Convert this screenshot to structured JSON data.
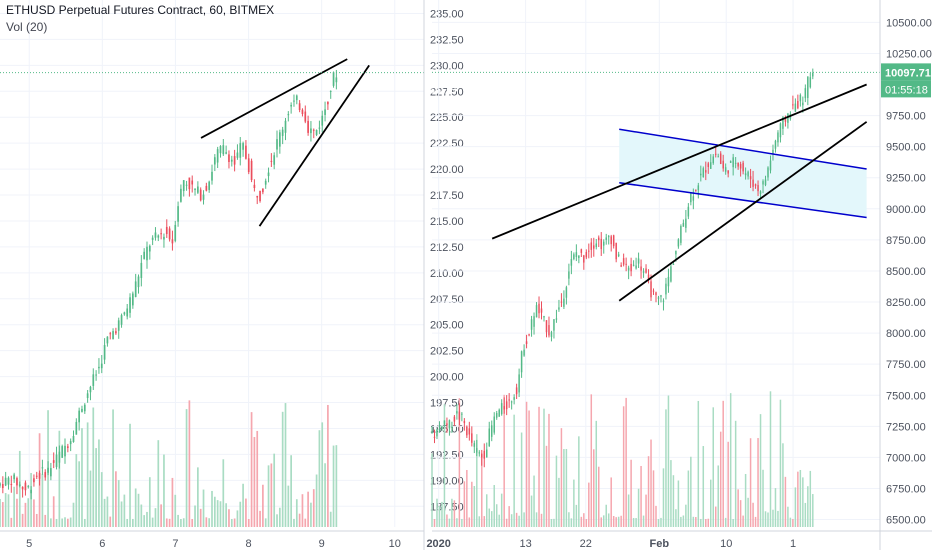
{
  "legend": {
    "symbol": "ETHUSD Perpetual Futures Contract, 60, BITMEX",
    "volume": "Vol (20)"
  },
  "colors": {
    "up": "#53b987",
    "down": "#eb4d5c",
    "vol_up": "#a9dcc3",
    "vol_down": "#f5a6ae",
    "trendline": "#000000",
    "channel": "#0000cc",
    "channel_fill": "#e3f7fb",
    "grid": "#f0f3fa",
    "axis_text": "#4c525e",
    "price_line": "#53b987"
  },
  "chart_data": [
    {
      "type": "candlestick",
      "panel": "left",
      "grid": true,
      "y_axis": {
        "ticks": [
          "235.00",
          "232.50",
          "230.00",
          "229.30",
          "227.50",
          "225.00",
          "222.50",
          "220.00",
          "217.50",
          "215.00",
          "212.50",
          "210.00",
          "207.50",
          "205.00",
          "202.50",
          "200.00",
          "197.50",
          "195.00",
          "192.50",
          "190.00",
          "187.50"
        ],
        "range": [
          185.5,
          236.3
        ]
      },
      "x_axis": {
        "ticks": [
          "5",
          "6",
          "7",
          "8",
          "9",
          "10"
        ]
      },
      "last_price": {
        "value": "229.30",
        "countdown": "55:18"
      },
      "path": [
        [
          4.6,
          189.5
        ],
        [
          4.8,
          190.2
        ],
        [
          5.0,
          189.0
        ],
        [
          5.15,
          190.5
        ],
        [
          5.3,
          191.0
        ],
        [
          5.45,
          192.5
        ],
        [
          5.6,
          194.0
        ],
        [
          5.75,
          197.0
        ],
        [
          5.9,
          199.5
        ],
        [
          6.0,
          201.0
        ],
        [
          6.1,
          203.5
        ],
        [
          6.2,
          204.5
        ],
        [
          6.3,
          205.5
        ],
        [
          6.4,
          207.0
        ],
        [
          6.5,
          209.0
        ],
        [
          6.6,
          211.5
        ],
        [
          6.7,
          213.0
        ],
        [
          6.8,
          213.5
        ],
        [
          6.9,
          214.0
        ],
        [
          7.0,
          213.0
        ],
        [
          7.05,
          216.0
        ],
        [
          7.15,
          219.0
        ],
        [
          7.3,
          218.0
        ],
        [
          7.4,
          217.5
        ],
        [
          7.5,
          219.0
        ],
        [
          7.6,
          221.5
        ],
        [
          7.7,
          222.0
        ],
        [
          7.85,
          220.5
        ],
        [
          7.95,
          222.5
        ],
        [
          8.05,
          220.0
        ],
        [
          8.1,
          218.0
        ],
        [
          8.2,
          217.5
        ],
        [
          8.3,
          220.0
        ],
        [
          8.4,
          222.0
        ],
        [
          8.5,
          224.0
        ],
        [
          8.6,
          226.0
        ],
        [
          8.7,
          226.5
        ],
        [
          8.8,
          225.5
        ],
        [
          8.85,
          224.0
        ],
        [
          8.95,
          223.5
        ],
        [
          9.05,
          225.0
        ],
        [
          9.15,
          227.5
        ],
        [
          9.22,
          229.3
        ]
      ],
      "trendlines": [
        {
          "from": [
            7.35,
            223.0
          ],
          "to": [
            9.35,
            230.6
          ]
        },
        {
          "from": [
            8.15,
            214.5
          ],
          "to": [
            9.65,
            230.0
          ]
        }
      ]
    },
    {
      "type": "candlestick",
      "panel": "right",
      "grid": true,
      "y_axis": {
        "ticks": [
          "10500.00",
          "10250.00",
          "10097.71",
          "9750.00",
          "9500.00",
          "9250.00",
          "9000.00",
          "8750.00",
          "8500.00",
          "8250.00",
          "8000.00",
          "7750.00",
          "7500.00",
          "7250.00",
          "7000.00",
          "6750.00",
          "6500.00"
        ],
        "range": [
          6440,
          10680
        ]
      },
      "x_axis": {
        "ticks": [
          "2020",
          "13",
          "22",
          "Feb",
          "10",
          "1"
        ]
      },
      "last_price": {
        "value": "10097.71",
        "countdown": "01:55:18"
      },
      "path": [
        [
          0,
          7200
        ],
        [
          1,
          7300
        ],
        [
          2,
          7250
        ],
        [
          3,
          7350
        ],
        [
          4,
          7300
        ],
        [
          5,
          7150
        ],
        [
          6,
          7050
        ],
        [
          7,
          7000
        ],
        [
          8,
          7200
        ],
        [
          9,
          7350
        ],
        [
          10,
          7400
        ],
        [
          11,
          7450
        ],
        [
          12,
          7550
        ],
        [
          12.5,
          7700
        ],
        [
          13,
          7900
        ],
        [
          14,
          8000
        ],
        [
          14.5,
          8150
        ],
        [
          15,
          8200
        ],
        [
          16,
          8100
        ],
        [
          17,
          8000
        ],
        [
          18,
          8150
        ],
        [
          19,
          8300
        ],
        [
          20,
          8550
        ],
        [
          21,
          8650
        ],
        [
          22,
          8600
        ],
        [
          23,
          8700
        ],
        [
          24,
          8750
        ],
        [
          25,
          8700
        ],
        [
          26,
          8800
        ],
        [
          27,
          8600
        ],
        [
          28,
          8550
        ],
        [
          29,
          8500
        ],
        [
          30,
          8600
        ],
        [
          31,
          8500
        ],
        [
          32,
          8350
        ],
        [
          33,
          8250
        ],
        [
          34,
          8300
        ],
        [
          35,
          8500
        ],
        [
          36,
          8700
        ],
        [
          37,
          8900
        ],
        [
          38,
          9100
        ],
        [
          39,
          9200
        ],
        [
          40,
          9300
        ],
        [
          41,
          9400
        ],
        [
          42,
          9450
        ],
        [
          43,
          9300
        ],
        [
          44,
          9350
        ],
        [
          45,
          9400
        ],
        [
          46,
          9300
        ],
        [
          47,
          9250
        ],
        [
          48,
          9150
        ],
        [
          49,
          9200
        ],
        [
          50,
          9400
        ],
        [
          51,
          9600
        ],
        [
          52,
          9700
        ],
        [
          53,
          9800
        ],
        [
          54,
          9850
        ],
        [
          55,
          9900
        ],
        [
          56,
          10097.71
        ]
      ],
      "x_map": {
        "2020": 0,
        "13": 13,
        "22": 22,
        "Feb": 33,
        "10": 43,
        "1": 53
      },
      "trendlines": [
        {
          "from": [
            8,
            8760
          ],
          "to": [
            64,
            10000
          ]
        },
        {
          "from": [
            27,
            8260
          ],
          "to": [
            64,
            9700
          ]
        }
      ],
      "channel": {
        "upper": [
          [
            27,
            9640
          ],
          [
            64,
            9320
          ]
        ],
        "lower": [
          [
            27,
            9210
          ],
          [
            64,
            8930
          ]
        ]
      }
    }
  ]
}
